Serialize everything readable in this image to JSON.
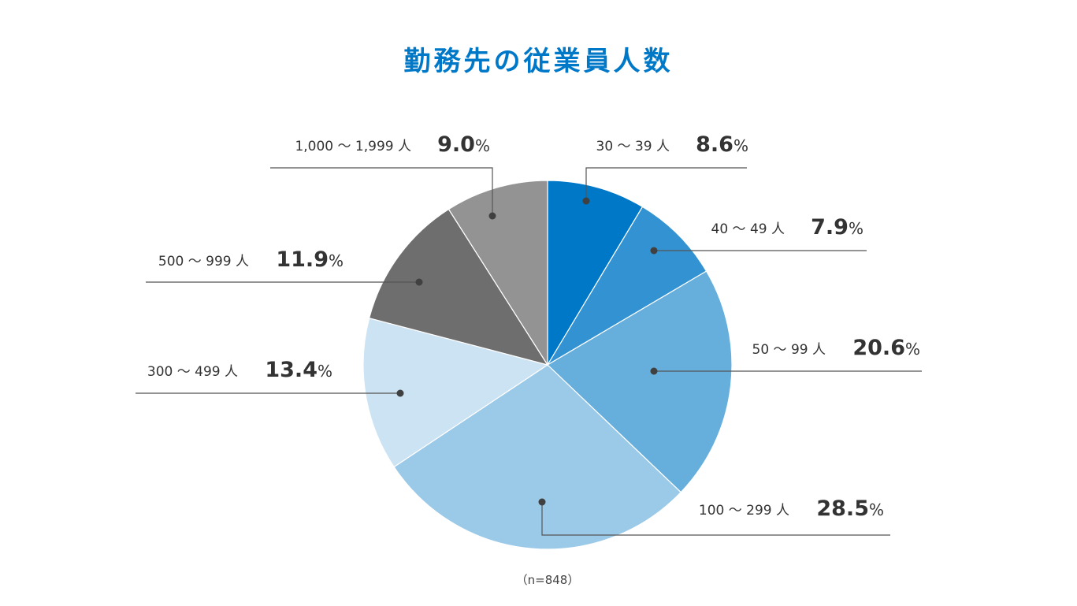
{
  "chart_data": {
    "type": "pie",
    "title": "勤務先の従業員人数",
    "note": "（n=848）",
    "unit": "%",
    "slices": [
      {
        "label": "30 〜 39 人",
        "value": 8.6,
        "value_label": "8.6",
        "color": "#0078c8"
      },
      {
        "label": "40 〜 49 人",
        "value": 7.9,
        "value_label": "7.9",
        "color": "#3393d2"
      },
      {
        "label": "50 〜 99 人",
        "value": 20.6,
        "value_label": "20.6",
        "color": "#66aedc"
      },
      {
        "label": "100 〜 299 人",
        "value": 28.5,
        "value_label": "28.5",
        "color": "#9bc9e8"
      },
      {
        "label": "300 〜 499 人",
        "value": 13.4,
        "value_label": "13.4",
        "color": "#cce3f4"
      },
      {
        "label": "500 〜 999 人",
        "value": 11.9,
        "value_label": "11.9",
        "color": "#6e6e6e"
      },
      {
        "label": "1,000 〜 1,999 人",
        "value": 9.0,
        "value_label": "9.0",
        "color": "#939393"
      }
    ]
  }
}
